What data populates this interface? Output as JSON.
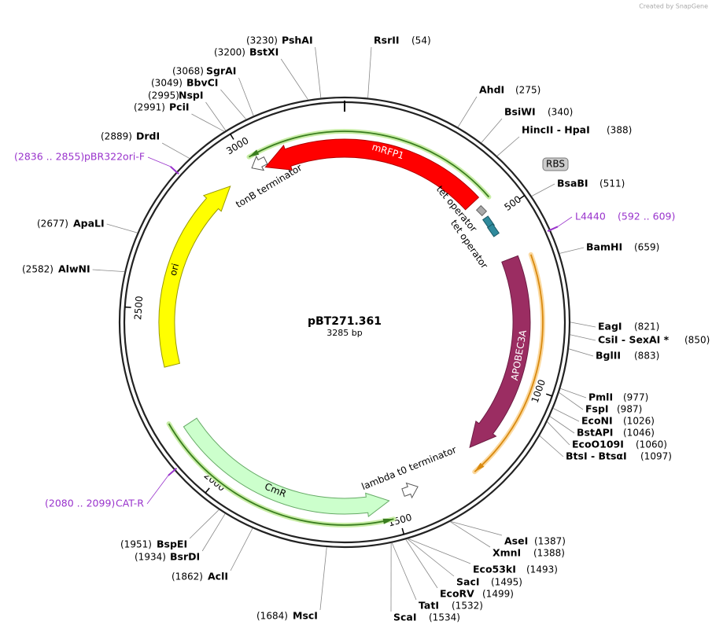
{
  "header": {
    "watermark": "Created by SnapGene"
  },
  "map": {
    "name": "pBT271.361",
    "length": "3285 bp"
  },
  "features": {
    "mRFP1": "mRFP1",
    "tonB": "tonB terminator",
    "tet1": "tet operator",
    "tet2": "tet operator",
    "rbs": "RBS",
    "apobec": "APOBEC3A",
    "ori": "ori",
    "cmr": "CmR",
    "lambda": "lambda t0 terminator"
  },
  "ruler": [
    "500",
    "1000",
    "1500",
    "2000",
    "2500",
    "3000"
  ],
  "sites": [
    {
      "name": "PshAI",
      "position": "(3230)"
    },
    {
      "name": "BstXI",
      "position": "(3200)"
    },
    {
      "name": "SgrAI",
      "position": "(3068)"
    },
    {
      "name": "BbvCI",
      "position": "(3049)"
    },
    {
      "name": "NspI",
      "position": "(2995)"
    },
    {
      "name": "PciI",
      "position": "(2991)"
    },
    {
      "name": "DrdI",
      "position": "(2889)"
    },
    {
      "name": "ApaLI",
      "position": "(2677)"
    },
    {
      "name": "AlwNI",
      "position": "(2582)"
    },
    {
      "name": "BspEI",
      "position": "(1951)"
    },
    {
      "name": "BsrDI",
      "position": "(1934)"
    },
    {
      "name": "AclI",
      "position": "(1862)"
    },
    {
      "name": "MscI",
      "position": "(1684)"
    },
    {
      "name": "RsrII",
      "position": "(54)"
    },
    {
      "name": "AhdI",
      "position": "(275)"
    },
    {
      "name": "BsiWI",
      "position": "(340)"
    },
    {
      "name": "HincII - HpaI",
      "position": "(388)"
    },
    {
      "name": "BsaBI",
      "position": "(511)"
    },
    {
      "name": "BamHI",
      "position": "(659)"
    },
    {
      "name": "EagI",
      "position": "(821)"
    },
    {
      "name": "CsiI - SexAI *",
      "position": "(850)"
    },
    {
      "name": "BglII",
      "position": "(883)"
    },
    {
      "name": "PmlI",
      "position": "(977)"
    },
    {
      "name": "FspI",
      "position": "(987)"
    },
    {
      "name": "EcoNI",
      "position": "(1026)"
    },
    {
      "name": "BstAPI",
      "position": "(1046)"
    },
    {
      "name": "EcoO109I",
      "position": "(1060)"
    },
    {
      "name": "BtsI - BtsαI",
      "position": "(1097)"
    },
    {
      "name": "AseI",
      "position": "(1387)"
    },
    {
      "name": "XmnI",
      "position": "(1388)"
    },
    {
      "name": "Eco53kI",
      "position": "(1493)"
    },
    {
      "name": "SacI",
      "position": "(1495)"
    },
    {
      "name": "EcoRV",
      "position": "(1499)"
    },
    {
      "name": "TatI",
      "position": "(1532)"
    },
    {
      "name": "ScaI",
      "position": "(1534)"
    }
  ],
  "primers": [
    {
      "name": "pBR322ori-F",
      "position": "(2836 .. 2855)"
    },
    {
      "name": "L4440",
      "position": "(592 .. 609)"
    },
    {
      "name": "CAT-R",
      "position": "(2080 .. 2099)"
    }
  ]
}
